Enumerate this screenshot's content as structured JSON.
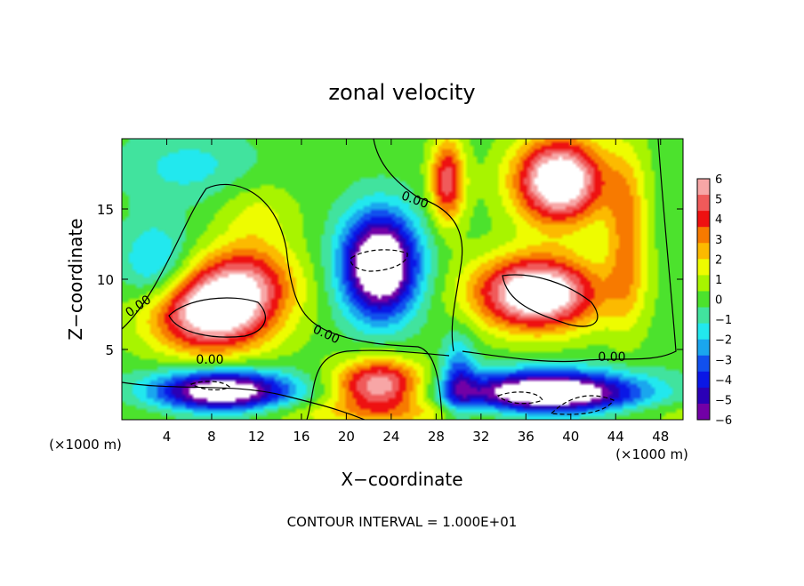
{
  "chart_data": {
    "type": "heatmap",
    "title": "zonal velocity",
    "xlabel": "X−coordinate",
    "ylabel": "Z−coordinate",
    "x_unit_left": "(×1000 m)",
    "x_unit_right": "(×1000 m)",
    "xlim": [
      0,
      50
    ],
    "ylim": [
      0,
      20
    ],
    "xticks": [
      4,
      8,
      12,
      16,
      20,
      24,
      28,
      32,
      36,
      40,
      44,
      48
    ],
    "yticks": [
      5,
      10,
      15
    ],
    "footer": "CONTOUR INTERVAL = 1.000E+01",
    "colorbar": {
      "range": [
        -6,
        6
      ],
      "labels": [
        "6",
        "5",
        "4",
        "3",
        "2",
        "1",
        "0",
        "−1",
        "−2",
        "−3",
        "−4",
        "−5",
        "−6"
      ],
      "colors": [
        "#f7a6a6",
        "#f05a5a",
        "#ee1111",
        "#f77a00",
        "#fcba00",
        "#eefc00",
        "#a8f400",
        "#4ce22d",
        "#41e39e",
        "#22e8ee",
        "#1aa6ee",
        "#1150ee",
        "#0a17e6",
        "#2a00b6",
        "#7200a6"
      ]
    },
    "contour_labels": [
      "0.00",
      "0.00",
      "0.00",
      "0.00",
      "0.00"
    ],
    "blobs": [
      {
        "cx": 8,
        "cy": 7.5,
        "rx": 5.5,
        "ry": 2.8,
        "v": 7,
        "sharp": 2
      },
      {
        "cx": 11,
        "cy": 10,
        "rx": 4.5,
        "ry": 2.5,
        "v": 4,
        "sharp": 2
      },
      {
        "cx": 12,
        "cy": 14.5,
        "rx": 3.5,
        "ry": 2.5,
        "v": 1.5,
        "sharp": 2
      },
      {
        "cx": 23,
        "cy": 11,
        "rx": 3.3,
        "ry": 3.6,
        "v": -9,
        "sharp": 2
      },
      {
        "cx": 37,
        "cy": 9,
        "rx": 5.5,
        "ry": 2.6,
        "v": 8,
        "sharp": 2
      },
      {
        "cx": 39,
        "cy": 17,
        "rx": 4,
        "ry": 3,
        "v": 8,
        "sharp": 2
      },
      {
        "cx": 29,
        "cy": 17,
        "rx": 1.5,
        "ry": 3,
        "v": 5,
        "sharp": 2
      },
      {
        "cx": 45,
        "cy": 13,
        "rx": 1.8,
        "ry": 6,
        "v": 3,
        "sharp": 2
      },
      {
        "cx": 9,
        "cy": 2,
        "rx": 6,
        "ry": 1.5,
        "v": -8,
        "sharp": 2
      },
      {
        "cx": 23,
        "cy": 2.5,
        "rx": 4,
        "ry": 1.8,
        "v": 6,
        "sharp": 2
      },
      {
        "cx": 38,
        "cy": 1.8,
        "rx": 8,
        "ry": 1.6,
        "v": -9,
        "sharp": 2
      },
      {
        "cx": 30,
        "cy": 3,
        "rx": 1.5,
        "ry": 3,
        "v": -3,
        "sharp": 2
      },
      {
        "cx": 3,
        "cy": 11,
        "rx": 3,
        "ry": 3,
        "v": -2.5,
        "sharp": 2
      },
      {
        "cx": 6,
        "cy": 18,
        "rx": 6,
        "ry": 2.5,
        "v": -1.5,
        "sharp": 2
      },
      {
        "cx": 30,
        "cy": 0.5,
        "rx": 25,
        "ry": 1,
        "v": 2,
        "sharp": 2
      }
    ]
  }
}
